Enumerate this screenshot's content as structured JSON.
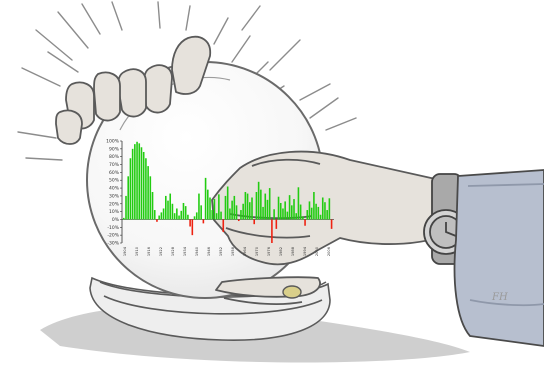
{
  "colors": {
    "positive_bar": "#22cc11",
    "negative_bar": "#ee2211",
    "sketch_line": "#8c8c8c",
    "sketch_dark": "#5a5a5a",
    "skin": "#e6e2dc",
    "sleeve": "#b7bfcf",
    "shadow": "#c9c9c9"
  },
  "illustration": {
    "signature": "FH",
    "description_icons": [
      "crystal-ball",
      "hand-icon",
      "wristwatch-icon",
      "ring-icon",
      "radiance-lines"
    ]
  },
  "chart_data": {
    "type": "bar",
    "title": "",
    "xlabel": "",
    "ylabel": "",
    "ylim": [
      -30,
      100
    ],
    "grid": false,
    "legend": "none",
    "y_tick_labels": [
      "-30%",
      "-20%",
      "-10%",
      "0%",
      "10%",
      "20%",
      "30%",
      "40%",
      "50%",
      "60%",
      "70%",
      "80%",
      "90%",
      "100%"
    ],
    "y_tick_values": [
      -30,
      -20,
      -10,
      0,
      10,
      20,
      30,
      40,
      50,
      60,
      70,
      80,
      90,
      100
    ],
    "x_tick_labels": [
      "1904",
      "1910",
      "1916",
      "1922",
      "1928",
      "1934",
      "1940",
      "1946",
      "1952",
      "1958",
      "1964",
      "1970",
      "1976",
      "1982",
      "1988",
      "1994",
      "2000",
      "2006"
    ],
    "values": [
      2,
      30,
      55,
      78,
      90,
      96,
      99,
      97,
      92,
      86,
      78,
      68,
      55,
      35,
      12,
      -3,
      5,
      9,
      14,
      30,
      24,
      33,
      20,
      8,
      14,
      5,
      11,
      21,
      17,
      6,
      -9,
      -20,
      4,
      9,
      33,
      18,
      -5,
      53,
      38,
      28,
      12,
      26,
      8,
      32,
      10,
      -16,
      30,
      42,
      14,
      24,
      30,
      18,
      -2,
      12,
      20,
      35,
      33,
      22,
      28,
      -6,
      35,
      48,
      38,
      16,
      33,
      25,
      40,
      -30,
      13,
      -12,
      29,
      21,
      14,
      23,
      10,
      31,
      18,
      26,
      8,
      41,
      19,
      4,
      -8,
      12,
      23,
      15,
      35,
      20,
      16,
      6,
      28,
      22,
      12,
      27,
      -12
    ]
  }
}
